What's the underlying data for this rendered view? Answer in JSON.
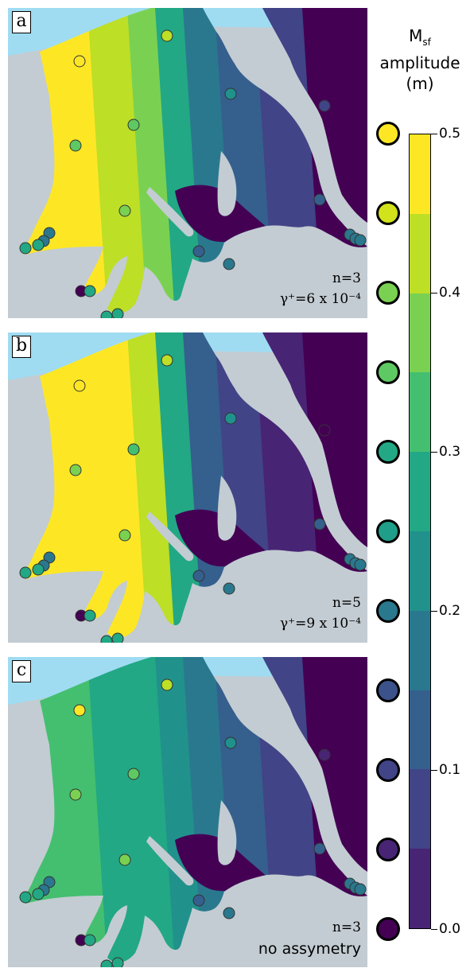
{
  "panels": [
    {
      "label": "a",
      "ann1": "n=3",
      "ann2": "γ⁺=6 x 10⁻⁴",
      "style": "a"
    },
    {
      "label": "b",
      "ann1": "n=5",
      "ann2": "γ⁺=9 x 10⁻⁴",
      "style": "b"
    },
    {
      "label": "c",
      "ann1": "n=3",
      "ann2": "no assymetry",
      "style": "c"
    }
  ],
  "colorbar": {
    "title_main": "M",
    "title_sub": "sf",
    "title_line2": "amplitude",
    "title_line3": "(m)",
    "ticks": [
      "0.5",
      "0.4",
      "0.3",
      "0.2",
      "0.1",
      "0.0"
    ],
    "range": [
      0.0,
      0.5
    ],
    "colors": [
      "#fde725",
      "#bddf26",
      "#7ad151",
      "#44bf70",
      "#22a884",
      "#21918c",
      "#2a788e",
      "#355f8d",
      "#414487",
      "#482475",
      "#440154"
    ]
  },
  "legend_colors": [
    "#fde725",
    "#d2e21b",
    "#7ad151",
    "#5ec962",
    "#22a884",
    "#1f9e89",
    "#2a788e",
    "#3b528b",
    "#414487",
    "#482475",
    "#440154"
  ],
  "colors": {
    "land": "#c3ccd2",
    "open_sea": "#9fdcf2"
  }
}
